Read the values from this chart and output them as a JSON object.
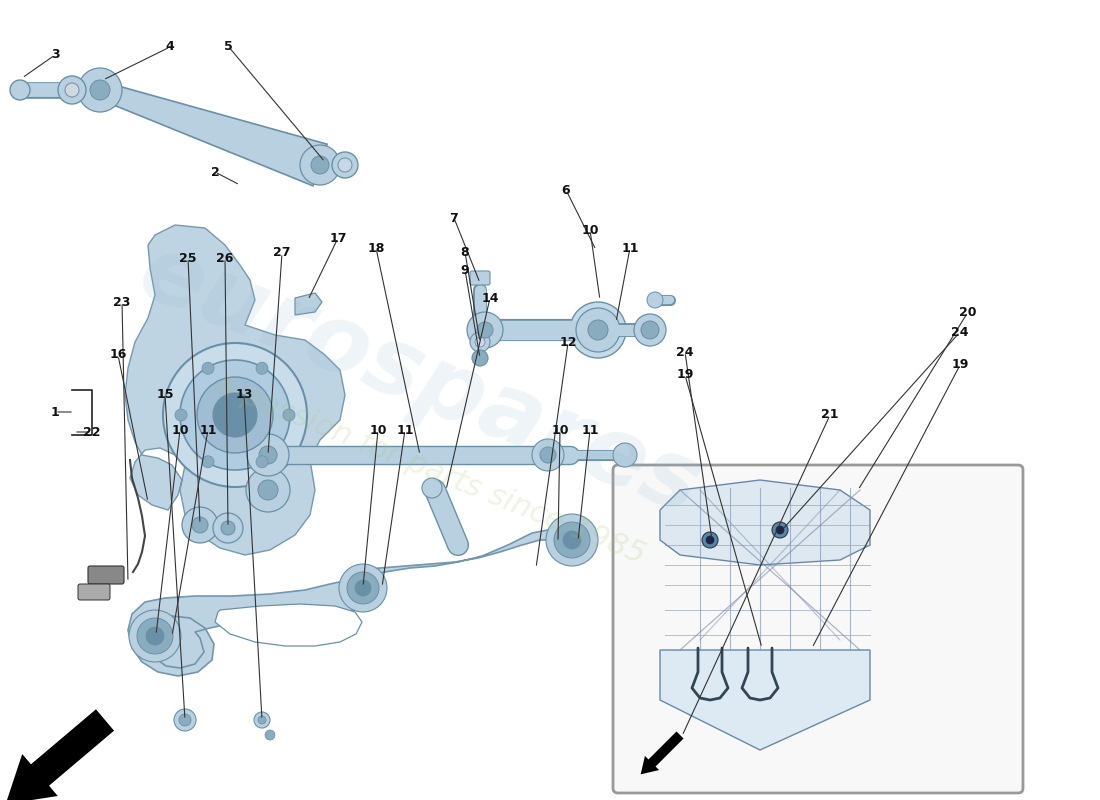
{
  "bg_color": "#ffffff",
  "pc": "#b8d0e0",
  "pcd": "#8aacbf",
  "pce": "#6a90a8",
  "lc": "#2a2a2a",
  "wm1": "#aac8dc",
  "wm2": "#c0d890",
  "inset_bg": "#f8f8f8",
  "inset_edge": "#999999"
}
